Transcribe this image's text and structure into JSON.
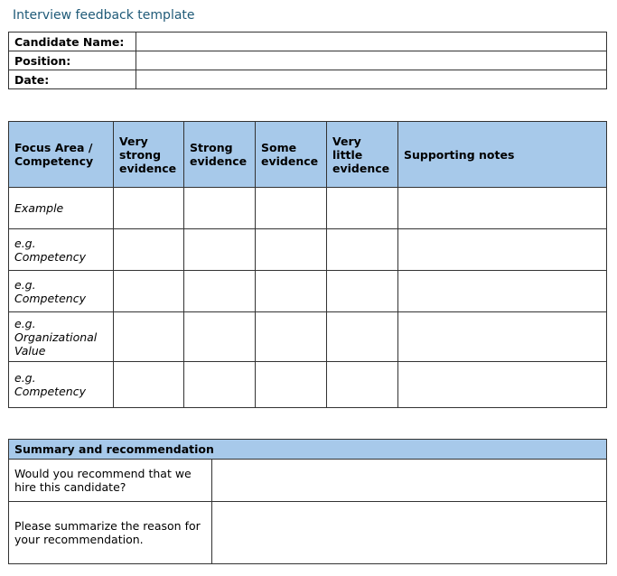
{
  "title": "Interview feedback template",
  "info": {
    "rows": [
      {
        "label": "Candidate Name:",
        "value": ""
      },
      {
        "label": "Position:",
        "value": ""
      },
      {
        "label": "Date:",
        "value": ""
      }
    ]
  },
  "ratings": {
    "headers": [
      "Focus Area / Competency",
      "Very strong evidence",
      "Strong evidence",
      "Some evidence",
      "Very little evidence",
      "Supporting notes"
    ],
    "rows": [
      "Example",
      "e.g. Competency",
      "e.g. Competency",
      "e.g. Organizational Value",
      "e.g. Competency"
    ]
  },
  "summary": {
    "header": "Summary and recommendation",
    "rows": [
      "Would you recommend that we hire this candidate?",
      "Please summarize the reason for your recommendation."
    ]
  },
  "colors": {
    "header_bg": "#a7c9ea",
    "title": "#1f5a78"
  }
}
